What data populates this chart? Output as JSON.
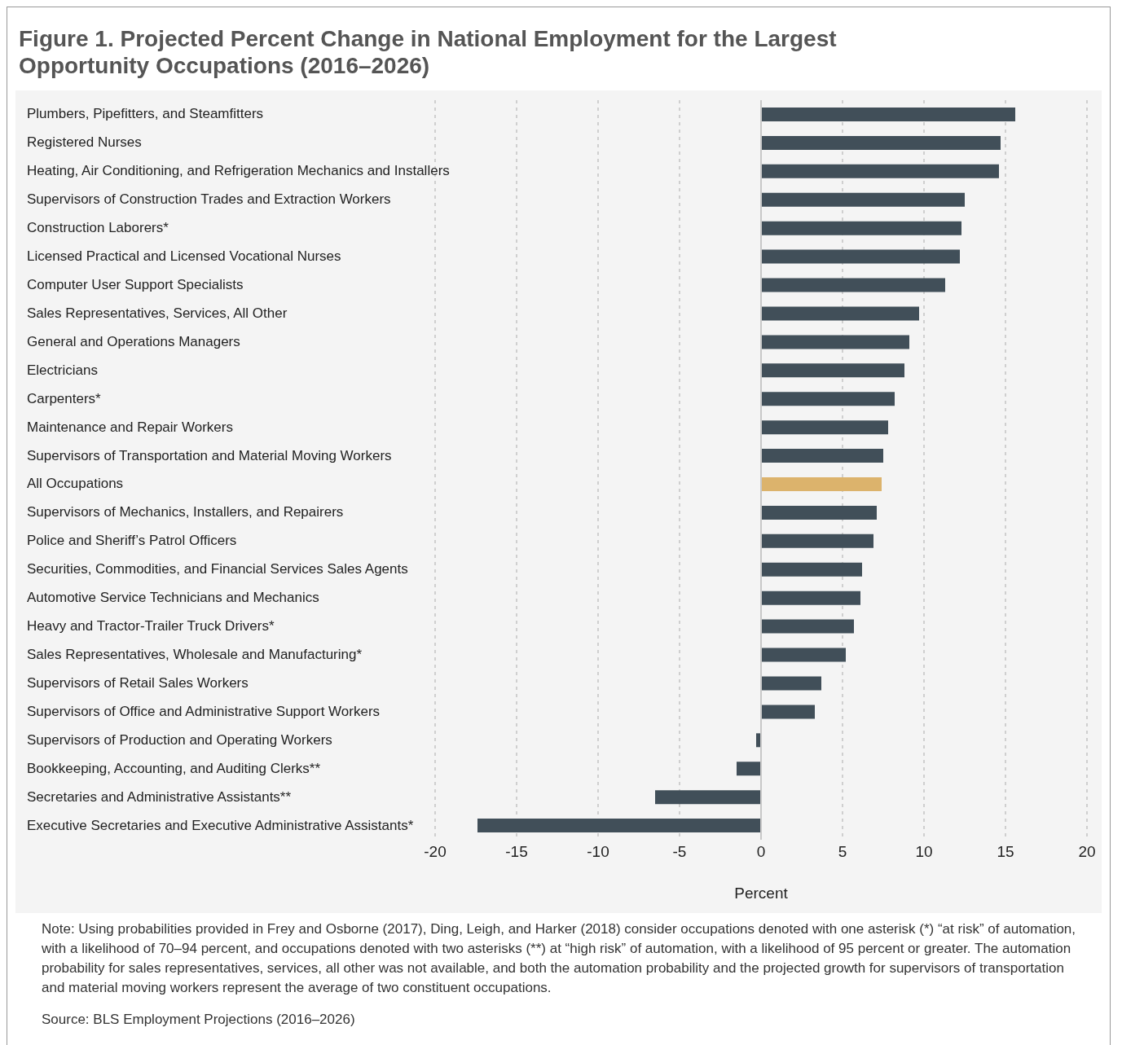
{
  "chart_data": {
    "type": "bar",
    "orientation": "horizontal",
    "title": "Figure 1.  Projected Percent Change in National Employment for the Largest Opportunity Occupations (2016–2026)",
    "xlabel": "Percent",
    "categories": [
      "Plumbers, Pipefitters, and Steamfitters",
      "Registered Nurses",
      "Heating, Air Conditioning, and Refrigeration Mechanics and Installers",
      "Supervisors of Construction Trades and Extraction Workers",
      "Construction Laborers*",
      "Licensed Practical and Licensed Vocational Nurses",
      "Computer User Support Specialists",
      "Sales Representatives, Services, All Other",
      "General and Operations Managers",
      "Electricians",
      "Carpenters*",
      "Maintenance and Repair Workers",
      "Supervisors of Transportation and Material Moving Workers",
      "All Occupations",
      "Supervisors of Mechanics, Installers, and Repairers",
      "Police and Sheriff’s Patrol Officers",
      "Securities, Commodities, and Financial Services Sales Agents",
      "Automotive Service Technicians and Mechanics",
      "Heavy and Tractor-Trailer Truck Drivers*",
      "Sales Representatives, Wholesale and Manufacturing*",
      "Supervisors of Retail Sales Workers",
      "Supervisors of Office and Administrative Support Workers",
      "Supervisors of Production and Operating Workers",
      "Bookkeeping, Accounting, and Auditing Clerks**",
      "Secretaries and Administrative Assistants**",
      "Executive Secretaries and Executive Administrative Assistants*"
    ],
    "values": [
      15.6,
      14.7,
      14.6,
      12.5,
      12.3,
      12.2,
      11.3,
      9.7,
      9.1,
      8.8,
      8.2,
      7.8,
      7.5,
      7.4,
      7.1,
      6.9,
      6.2,
      6.1,
      5.7,
      5.2,
      3.7,
      3.3,
      -0.3,
      -1.5,
      -6.5,
      -17.4
    ],
    "colors": [
      "#414f59",
      "#414f59",
      "#414f59",
      "#414f59",
      "#414f59",
      "#414f59",
      "#414f59",
      "#414f59",
      "#414f59",
      "#414f59",
      "#414f59",
      "#414f59",
      "#414f59",
      "#dcb36c",
      "#414f59",
      "#414f59",
      "#414f59",
      "#414f59",
      "#414f59",
      "#414f59",
      "#414f59",
      "#414f59",
      "#414f59",
      "#414f59",
      "#414f59",
      "#414f59"
    ],
    "xlim": [
      -20,
      20
    ],
    "xticks": [
      -20,
      -15,
      -10,
      -5,
      0,
      5,
      10,
      15,
      20
    ],
    "grid": "x",
    "ref_lines": [
      {
        "axis": "x",
        "value": 0,
        "color": "#c8c8c8"
      }
    ],
    "annotations": [
      "Note: Using probabilities provided in Frey and Osborne (2017), Ding, Leigh, and Harker (2018) consider occupations denoted with one asterisk (*) “at risk” of automation, with a likelihood of 70–94 percent, and occupations denoted with two asterisks (**) at “high risk” of automation, with a likelihood of 95 percent or greater. The automation probability for sales representatives, services, all other was not available, and both the automation probability and the projected growth for supervisors of transportation and material moving workers represent the average of two constituent occupations.",
      "Source: BLS Employment Projections (2016–2026)"
    ]
  }
}
